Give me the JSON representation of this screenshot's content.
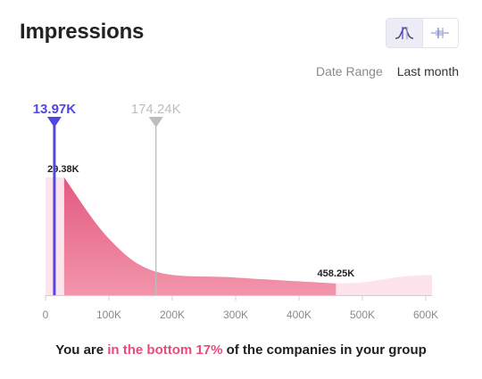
{
  "header": {
    "title": "Impressions",
    "toggle": {
      "options": [
        {
          "icon": "distribution-curve-icon",
          "active": true
        },
        {
          "icon": "range-bar-icon",
          "active": false
        }
      ]
    }
  },
  "date_range": {
    "label": "Date Range",
    "value": "Last month"
  },
  "chart_data": {
    "type": "area",
    "xlim": [
      0,
      610000
    ],
    "x_ticks": [
      0,
      100000,
      200000,
      300000,
      400000,
      500000,
      600000
    ],
    "x_tick_labels": [
      "0",
      "100K",
      "200K",
      "300K",
      "400K",
      "500K",
      "600K"
    ],
    "grid": false,
    "distribution": {
      "x": [
        0,
        29380,
        100000,
        174240,
        300000,
        458250,
        610000
      ],
      "relative_density": [
        1.0,
        1.0,
        0.48,
        0.2,
        0.15,
        0.1,
        0.17
      ]
    },
    "range_start": 29380,
    "range_end": 458250,
    "range_start_label": "29.38K",
    "range_end_label": "458.25K",
    "markers": [
      {
        "value": 13970,
        "label": "13.97K",
        "color": "#5046e5"
      },
      {
        "value": 174240,
        "label": "174.24K",
        "color": "#bdbdbd"
      }
    ],
    "colors": {
      "area_main": "#ef8fa6",
      "area_dark": "#e35a80",
      "area_light": "#fde4ec"
    }
  },
  "footer": {
    "prefix": "You are ",
    "highlight": "in the bottom 17%",
    "suffix": " of the companies in your group"
  }
}
